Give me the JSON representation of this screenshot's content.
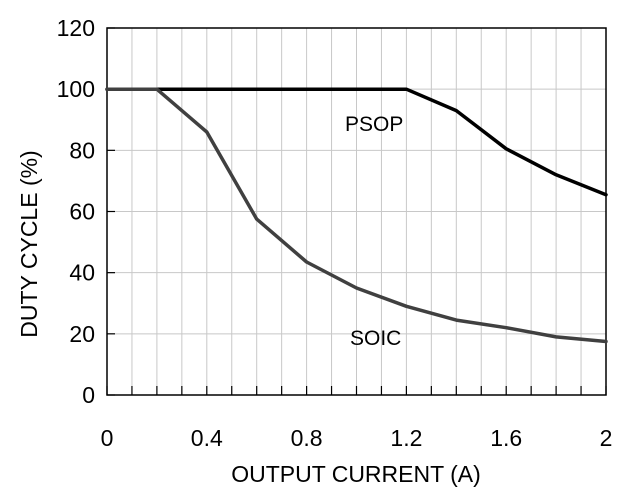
{
  "chart_data": {
    "type": "line",
    "title": "",
    "xlabel": "OUTPUT CURRENT (A)",
    "ylabel": "DUTY CYCLE (%)",
    "xlim": [
      0,
      2
    ],
    "ylim": [
      0,
      120
    ],
    "x_ticks": [
      0,
      0.4,
      0.8,
      1.2,
      1.6,
      2
    ],
    "x_tick_labels": [
      "0",
      "0.4",
      "0.8",
      "1.2",
      "1.6",
      "2"
    ],
    "x_minor_step": 0.1,
    "y_ticks": [
      0,
      20,
      40,
      60,
      80,
      100,
      120
    ],
    "y_tick_labels": [
      "0",
      "20",
      "40",
      "60",
      "80",
      "100",
      "120"
    ],
    "grid": true,
    "series": [
      {
        "name": "PSOP",
        "color": "#000000",
        "x": [
          0,
          0.2,
          0.4,
          0.6,
          0.8,
          1.0,
          1.2,
          1.4,
          1.6,
          1.8,
          2.0
        ],
        "y": [
          100,
          100,
          100,
          100,
          100,
          100,
          100,
          93,
          80.5,
          72,
          65.5
        ]
      },
      {
        "name": "SOIC",
        "color": "#404040",
        "x": [
          0,
          0.2,
          0.4,
          0.6,
          0.8,
          1.0,
          1.2,
          1.4,
          1.6,
          1.8,
          2.0
        ],
        "y": [
          100,
          100,
          86,
          57.5,
          43.5,
          35,
          29,
          24.5,
          22,
          19,
          17.5
        ]
      }
    ]
  }
}
